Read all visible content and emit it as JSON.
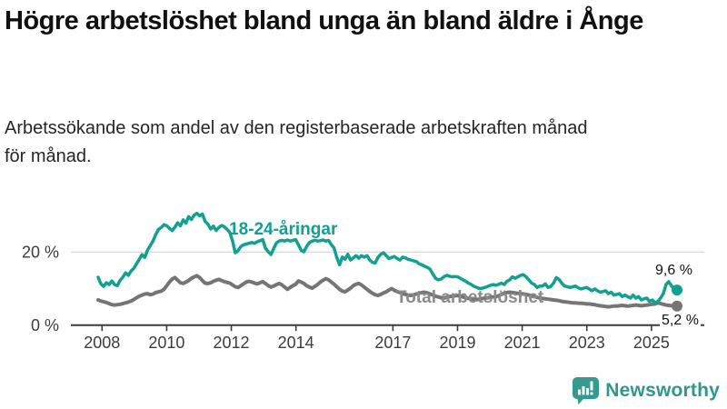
{
  "header": {
    "title": "Högre arbetslöshet bland unga än bland äldre i Ånge",
    "subtitle": "Arbetssökande som andel av den registerbaserade arbetskraften månad för månad."
  },
  "colors": {
    "youth": "#12A091",
    "total": "#757575",
    "total_label": "#8A8A8A",
    "grid": "#DBDBDB",
    "axis": "#3C3C3C",
    "value_label": "#111111",
    "brand": "#2F978B"
  },
  "chart_data": {
    "type": "line",
    "title": "Högre arbetslöshet bland unga än bland äldre i Ånge",
    "subtitle": "Arbetssökande som andel av den registerbaserade arbetskraften månad för månad.",
    "unit": "%",
    "x_start": "2008-01",
    "x_end": "2025-08",
    "x_interval": "monthly",
    "xticks": [
      2008,
      2010,
      2012,
      2014,
      2017,
      2019,
      2021,
      2023,
      2025
    ],
    "yticks": [
      {
        "value": 20,
        "label": "20 %"
      },
      {
        "value": 0,
        "label": "0 %"
      }
    ],
    "ylim": [
      0,
      33
    ],
    "grid": "y-only",
    "legend_position": "inline-labels",
    "series": [
      {
        "name": "18-24-åringar",
        "color": "#12A091",
        "end_label": "9,6 %",
        "last_value": 9.6,
        "values": [
          13.1,
          11.3,
          10.6,
          11.6,
          11.1,
          12.1,
          11.1,
          10.8,
          12.3,
          13.1,
          14.3,
          13.6,
          14.8,
          15.5,
          16.8,
          18.0,
          19.3,
          18.5,
          20.5,
          21.8,
          23.0,
          24.8,
          26.2,
          26.7,
          27.5,
          27.2,
          26.5,
          25.9,
          26.8,
          28.0,
          27.2,
          28.8,
          27.9,
          29.7,
          28.9,
          30.1,
          30.6,
          29.9,
          30.4,
          28.4,
          27.6,
          26.3,
          27.1,
          25.9,
          26.7,
          27.3,
          26.9,
          26.2,
          25.4,
          23.0,
          19.8,
          20.4,
          21.5,
          22.0,
          22.2,
          22.4,
          22.6,
          22.4,
          22.8,
          23.1,
          23.4,
          21.0,
          20.1,
          19.3,
          21.0,
          22.5,
          23.0,
          23.2,
          23.0,
          23.3,
          23.0,
          23.2,
          23.4,
          22.0,
          20.5,
          20.1,
          21.5,
          22.6,
          23.0,
          23.2,
          23.0,
          23.1,
          23.3,
          23.0,
          23.2,
          22.0,
          21.1,
          18.5,
          16.5,
          18.6,
          18.0,
          19.4,
          17.8,
          18.4,
          19.0,
          18.3,
          19.0,
          18.6,
          19.0,
          17.8,
          17.2,
          17.0,
          18.5,
          19.4,
          19.8,
          19.0,
          18.2,
          18.5,
          18.8,
          18.2,
          17.8,
          18.6,
          18.4,
          18.0,
          17.8,
          17.6,
          17.4,
          16.8,
          16.5,
          16.1,
          15.8,
          15.3,
          14.0,
          12.8,
          12.4,
          12.6,
          13.2,
          13.6,
          13.4,
          13.2,
          13.3,
          13.2,
          12.8,
          12.4,
          12.0,
          11.5,
          11.1,
          10.6,
          10.3,
          10.0,
          10.1,
          10.3,
          10.6,
          10.9,
          11.1,
          10.9,
          11.2,
          11.5,
          11.1,
          12.0,
          12.4,
          13.2,
          12.8,
          13.2,
          13.6,
          13.8,
          13.2,
          12.4,
          11.5,
          11.1,
          10.3,
          10.7,
          10.7,
          11.3,
          10.3,
          10.6,
          11.5,
          13.0,
          12.5,
          11.5,
          10.7,
          10.5,
          10.3,
          10.5,
          10.7,
          10.2,
          9.9,
          10.1,
          10.3,
          9.9,
          9.4,
          9.9,
          9.4,
          9.0,
          9.2,
          9.4,
          8.6,
          9.0,
          8.2,
          8.4,
          8.6,
          7.8,
          8.2,
          7.8,
          7.4,
          8.2,
          7.4,
          7.8,
          6.9,
          7.2,
          7.4,
          6.5,
          6.9,
          6.1,
          6.5,
          7.4,
          8.6,
          11.1,
          11.9,
          10.7,
          9.9,
          9.6
        ]
      },
      {
        "name": "Total arbetslöshet",
        "color": "#757575",
        "end_label": "5,2 %",
        "last_value": 5.2,
        "values": [
          6.9,
          6.6,
          6.4,
          6.2,
          5.9,
          5.6,
          5.5,
          5.6,
          5.7,
          5.9,
          6.1,
          6.3,
          6.6,
          7.0,
          7.5,
          7.9,
          8.2,
          8.5,
          8.6,
          8.3,
          8.5,
          8.9,
          9.1,
          9.3,
          9.8,
          10.8,
          11.8,
          12.6,
          13.0,
          12.3,
          11.6,
          11.4,
          11.8,
          12.2,
          12.8,
          13.2,
          13.5,
          13.0,
          12.2,
          11.5,
          11.4,
          11.6,
          12.0,
          12.3,
          12.5,
          12.2,
          11.9,
          11.7,
          11.5,
          11.0,
          10.5,
          10.3,
          10.8,
          11.3,
          11.8,
          12.0,
          11.8,
          11.5,
          11.3,
          11.6,
          11.9,
          11.4,
          10.8,
          10.4,
          10.7,
          11.1,
          11.4,
          11.0,
          10.4,
          9.8,
          10.3,
          10.8,
          11.2,
          12.1,
          11.8,
          11.4,
          10.8,
          10.4,
          10.1,
          10.6,
          11.1,
          11.8,
          12.3,
          12.7,
          12.4,
          11.8,
          11.2,
          10.5,
          9.8,
          9.3,
          9.1,
          9.6,
          10.1,
          10.8,
          11.2,
          11.4,
          11.0,
          10.4,
          9.8,
          9.2,
          8.7,
          8.3,
          8.1,
          8.4,
          8.8,
          9.1,
          9.6,
          10.0,
          9.5,
          9.2,
          8.9,
          8.6,
          8.4,
          8.2,
          8.1,
          8.3,
          8.5,
          8.7,
          8.9,
          9.0,
          8.8,
          8.5,
          8.2,
          7.9,
          7.7,
          7.5,
          7.4,
          7.6,
          7.8,
          7.9,
          8.0,
          8.1,
          7.9,
          7.7,
          7.5,
          7.3,
          7.2,
          7.1,
          7.0,
          7.1,
          7.3,
          7.4,
          7.5,
          7.6,
          7.7,
          7.8,
          8.0,
          8.4,
          8.7,
          8.9,
          9.0,
          8.9,
          8.8,
          8.7,
          8.6,
          8.5,
          8.4,
          8.2,
          8.0,
          7.8,
          7.6,
          7.4,
          7.3,
          7.2,
          7.1,
          7.0,
          6.9,
          6.8,
          6.7,
          6.5,
          6.4,
          6.3,
          6.2,
          6.1,
          6.1,
          6.0,
          6.0,
          5.9,
          5.8,
          5.8,
          5.7,
          5.6,
          5.4,
          5.3,
          5.2,
          5.1,
          5.0,
          5.1,
          5.2,
          5.2,
          5.3,
          5.4,
          5.3,
          5.2,
          5.3,
          5.4,
          5.5,
          5.4,
          5.3,
          5.4,
          5.5,
          5.6,
          5.7,
          5.8,
          6.1,
          5.9,
          5.7,
          5.5,
          5.4,
          5.3,
          5.2,
          5.2
        ]
      }
    ]
  },
  "footer": {
    "brand": "Newsworthy",
    "logo_icon": "bar-chart-speech-bubble"
  }
}
